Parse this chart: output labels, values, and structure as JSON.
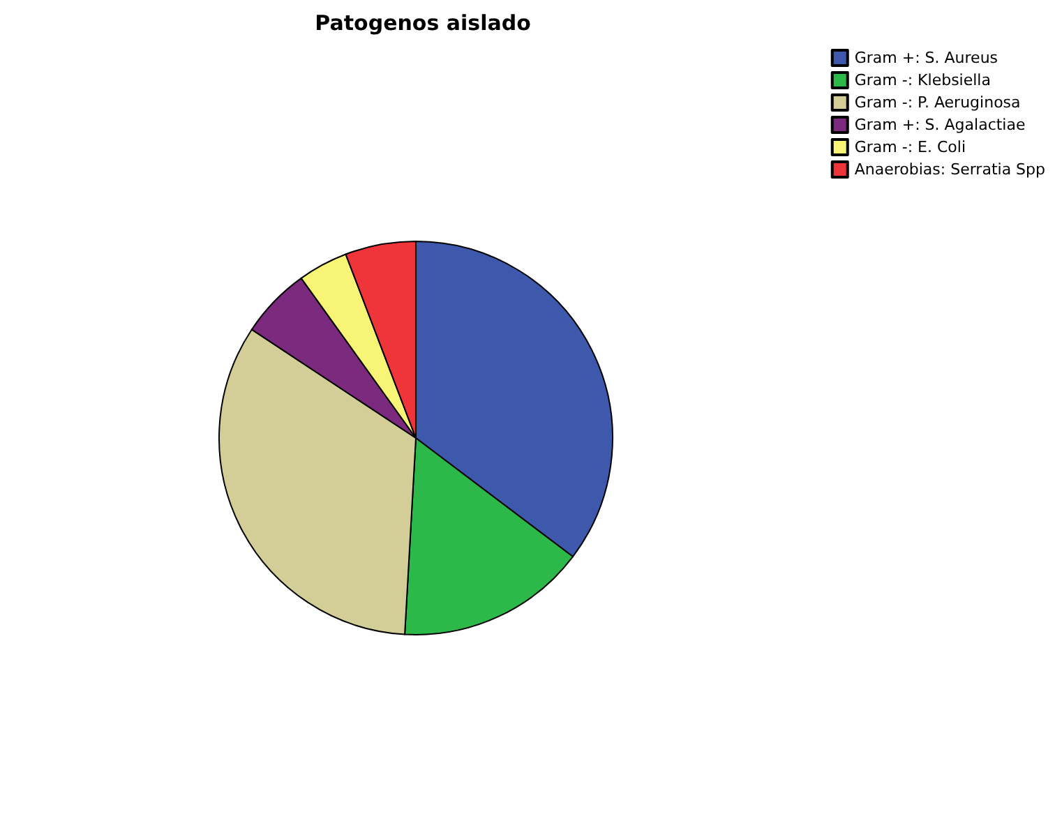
{
  "chart_data": {
    "type": "pie",
    "title": "Patogenos aislado",
    "categories": [
      "Gram +: S. Aureus",
      "Gram -: Klebsiella",
      "Gram -: P. Aeruginosa",
      "Gram +: S. Agalactiae",
      "Gram -: E. Coli",
      "Anaerobias: Serratia Spp"
    ],
    "values": [
      35.3,
      15.6,
      33.4,
      5.8,
      4.1,
      5.8
    ],
    "colors": [
      "#3e58ac",
      "#2db84a",
      "#d3ce97",
      "#7b2a7e",
      "#f8f576",
      "#f0353a"
    ],
    "legend": "top right"
  }
}
